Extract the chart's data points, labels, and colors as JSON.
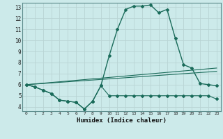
{
  "xlabel": "Humidex (Indice chaleur)",
  "bg_color": "#cceaea",
  "grid_color": "#b8d4d4",
  "line_color": "#1a6b5a",
  "border_color": "#5a8a8a",
  "xlim": [
    -0.5,
    23.5
  ],
  "ylim": [
    3.6,
    13.4
  ],
  "yticks": [
    4,
    5,
    6,
    7,
    8,
    9,
    10,
    11,
    12,
    13
  ],
  "xticks": [
    0,
    1,
    2,
    3,
    4,
    5,
    6,
    7,
    8,
    9,
    10,
    11,
    12,
    13,
    14,
    15,
    16,
    17,
    18,
    19,
    20,
    21,
    22,
    23
  ],
  "series1_x": [
    0,
    1,
    2,
    3,
    4,
    5,
    6,
    7,
    8,
    9,
    10,
    11,
    12,
    13,
    14,
    15,
    16,
    17,
    18,
    19,
    20,
    21,
    22,
    23
  ],
  "series1_y": [
    6.0,
    5.8,
    5.5,
    5.2,
    4.6,
    4.5,
    4.4,
    3.8,
    4.5,
    5.9,
    8.6,
    11.0,
    12.8,
    13.1,
    13.1,
    13.2,
    12.5,
    12.8,
    10.2,
    7.8,
    7.5,
    6.1,
    6.0,
    5.9
  ],
  "series2_x": [
    0,
    1,
    2,
    3,
    4,
    5,
    6,
    7,
    8,
    9,
    10,
    11,
    12,
    13,
    14,
    15,
    16,
    17,
    18,
    19,
    20,
    21,
    22,
    23
  ],
  "series2_y": [
    6.0,
    5.8,
    5.5,
    5.2,
    4.6,
    4.5,
    4.4,
    3.8,
    4.5,
    5.9,
    5.0,
    5.0,
    5.0,
    5.0,
    5.0,
    5.0,
    5.0,
    5.0,
    5.0,
    5.0,
    5.0,
    5.0,
    5.0,
    4.7
  ],
  "series3_x": [
    0,
    23
  ],
  "series3_y": [
    6.0,
    7.2
  ],
  "series4_x": [
    0,
    23
  ],
  "series4_y": [
    6.0,
    7.5
  ]
}
